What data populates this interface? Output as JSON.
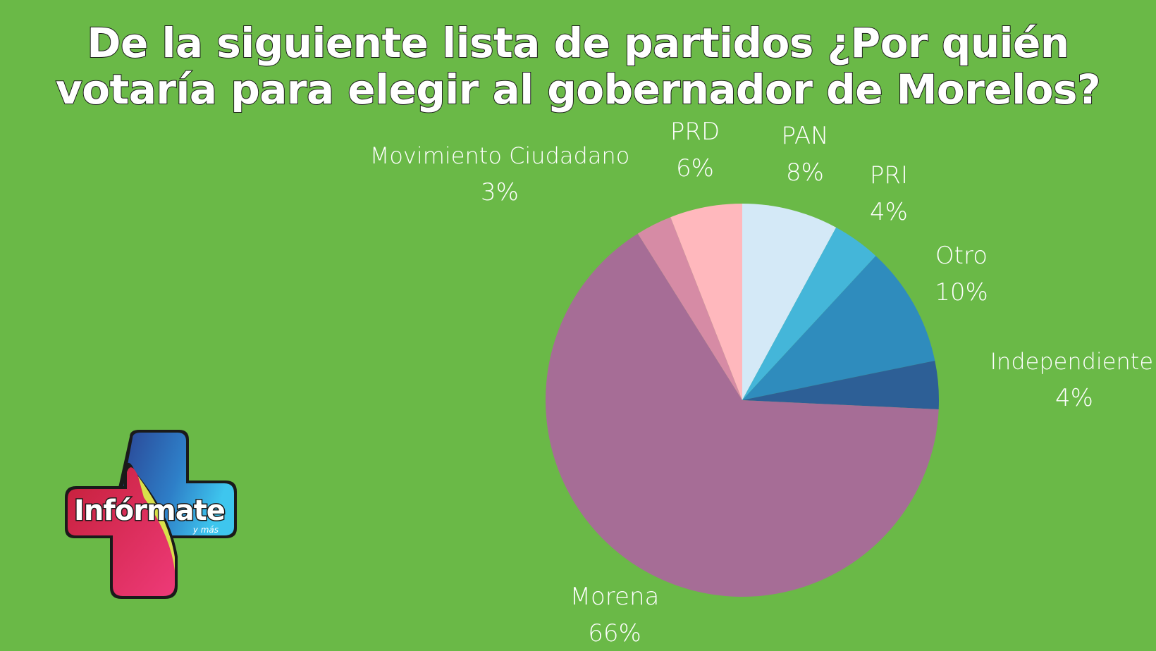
{
  "title": {
    "line1": "De la siguiente lista de partidos ¿Por quién",
    "line2": "votaría para elegir al gobernador de Morelos?"
  },
  "logo": {
    "name": "Infórmate",
    "tagline": "y más"
  },
  "chart_data": {
    "type": "pie",
    "start_angle_deg": 0,
    "direction": "clockwise",
    "slices": [
      {
        "label": "PAN",
        "value": 8,
        "display": "8%",
        "color": "#d4e9f7"
      },
      {
        "label": "PRI",
        "value": 4,
        "display": "4%",
        "color": "#44b6d9"
      },
      {
        "label": "Otro",
        "value": 10,
        "display": "10%",
        "color": "#2f8cbd"
      },
      {
        "label": "Independiente",
        "value": 4,
        "display": "4%",
        "color": "#2d5f96"
      },
      {
        "label": "Morena",
        "value": 66,
        "display": "66%",
        "color": "#a66d96"
      },
      {
        "label": "Movimiento Ciudadano",
        "value": 3,
        "display": "3%",
        "color": "#d68ba5"
      },
      {
        "label": "PRD",
        "value": 6,
        "display": "6%",
        "color": "#ffb8bd"
      }
    ]
  }
}
